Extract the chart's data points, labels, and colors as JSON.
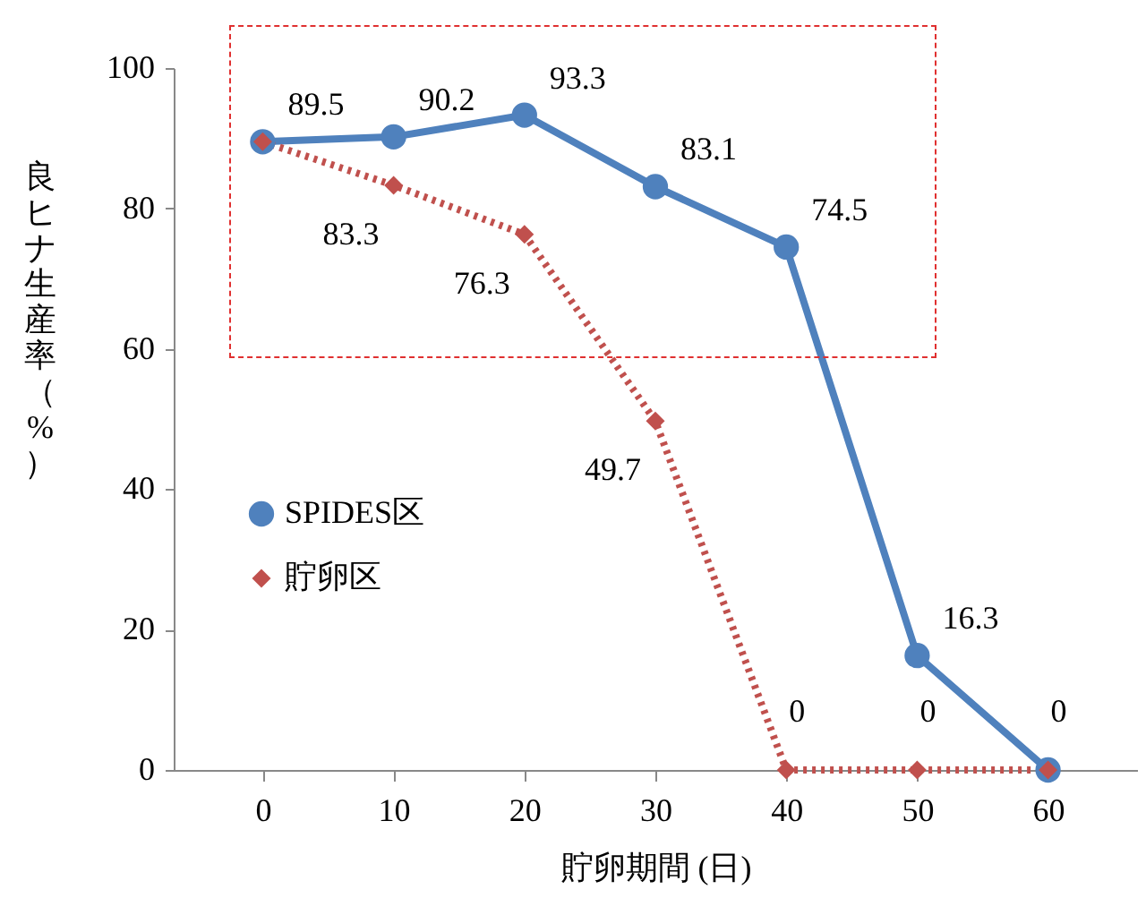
{
  "chart_data": {
    "type": "line",
    "xlabel": "貯卵期間 (日)",
    "ylabel": "良ヒナ生産率（%）",
    "categories": [
      "0",
      "10",
      "20",
      "30",
      "40",
      "50",
      "60"
    ],
    "ylim": [
      0,
      100
    ],
    "yticks": [
      0,
      20,
      40,
      60,
      80,
      100
    ],
    "grid": false,
    "legend": "left",
    "series": [
      {
        "name": "SPIDES区",
        "color": "#4f81bd",
        "marker": "circle",
        "line_style": "solid",
        "values": [
          89.5,
          90.2,
          93.3,
          83.1,
          74.5,
          16.3,
          0
        ],
        "value_labels": [
          "89.5",
          "90.2",
          "93.3",
          "83.1",
          "74.5",
          "16.3",
          "0"
        ]
      },
      {
        "name": "貯卵区",
        "color": "#c0504d",
        "marker": "diamond",
        "line_style": "dotted",
        "values": [
          89.5,
          83.3,
          76.3,
          49.7,
          0,
          0,
          0
        ],
        "value_labels": [
          null,
          "83.3",
          "76.3",
          "49.7",
          "0",
          "0",
          null
        ]
      }
    ]
  }
}
